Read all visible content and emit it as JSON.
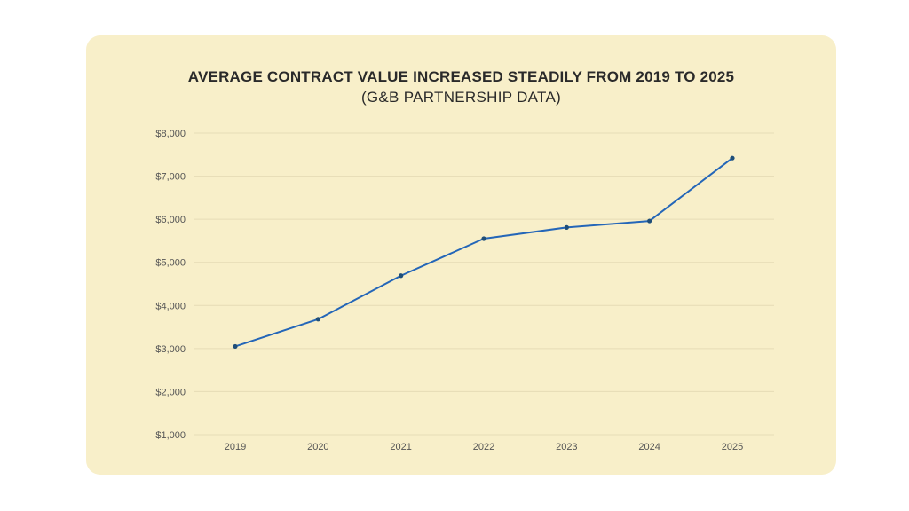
{
  "chart_data": {
    "type": "line",
    "title": "AVERAGE CONTRACT VALUE INCREASED STEADILY FROM 2019 TO 2025",
    "subtitle": "(G&B PARTNERSHIP DATA)",
    "xlabel": "",
    "ylabel": "",
    "categories": [
      "2019",
      "2020",
      "2021",
      "2022",
      "2023",
      "2024",
      "2025"
    ],
    "series": [
      {
        "values": [
          3050,
          3680,
          4690,
          5550,
          5810,
          5960,
          7420
        ],
        "color": "#2466b8"
      }
    ],
    "ylim": [
      1000,
      8000
    ],
    "yticks": [
      1000,
      2000,
      3000,
      4000,
      5000,
      6000,
      7000,
      8000
    ],
    "ytick_labels": [
      "$1,000",
      "$2,000",
      "$3,000",
      "$4,000",
      "$5,000",
      "$6,000",
      "$7,000",
      "$8,000"
    ],
    "grid": true,
    "legend": "none",
    "colors": {
      "background": "#f8efc9",
      "gridline": "#e6dcb6",
      "line": "#2466b8",
      "marker": "#1f4e79"
    }
  }
}
